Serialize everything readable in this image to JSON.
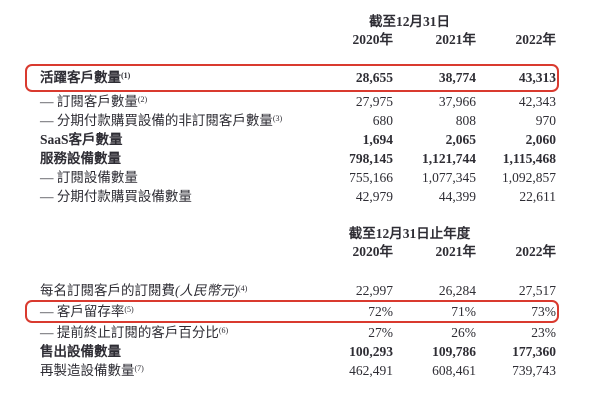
{
  "colors": {
    "highlight_border": "#d93a2f",
    "text": "#2e2d34",
    "background": "#ffffff"
  },
  "table1": {
    "period_header": "截至12月31日",
    "years": [
      "2020年",
      "2021年",
      "2022年"
    ],
    "rows": [
      {
        "label": "活躍客戶數量",
        "sup": "(1)",
        "values": [
          "28,655",
          "38,774",
          "43,313"
        ]
      },
      {
        "label": "— 訂閱客戶數量",
        "sup": "(2)",
        "values": [
          "27,975",
          "37,966",
          "42,343"
        ]
      },
      {
        "label": "— 分期付款購買設備的非訂閱客戶數量",
        "sup": "(3)",
        "values": [
          "680",
          "808",
          "970"
        ]
      },
      {
        "label": "SaaS客戶數量",
        "values": [
          "1,694",
          "2,065",
          "2,060"
        ]
      },
      {
        "label": "服務設備數量",
        "values": [
          "798,145",
          "1,121,744",
          "1,115,468"
        ]
      },
      {
        "label": "— 訂閱設備數量",
        "values": [
          "755,166",
          "1,077,345",
          "1,092,857"
        ]
      },
      {
        "label": "— 分期付款購買設備數量",
        "values": [
          "42,979",
          "44,399",
          "22,611"
        ]
      }
    ]
  },
  "table2": {
    "period_header": "截至12月31日止年度",
    "years": [
      "2020年",
      "2021年",
      "2022年"
    ],
    "rows": [
      {
        "label": "每名訂閱客戶的訂閱費",
        "label_paren": "(人民幣元)",
        "sup": "(4)",
        "values": [
          "22,997",
          "26,284",
          "27,517"
        ]
      },
      {
        "label": "— 客戶留存率",
        "sup": "(5)",
        "values": [
          "72%",
          "71%",
          "73%"
        ]
      },
      {
        "label": "— 提前終止訂閱的客戶百分比",
        "sup": "(6)",
        "values": [
          "27%",
          "26%",
          "23%"
        ]
      },
      {
        "label": "售出設備數量",
        "values": [
          "100,293",
          "109,786",
          "177,360"
        ]
      },
      {
        "label": "再製造設備數量",
        "sup": "(7)",
        "values": [
          "462,491",
          "608,461",
          "739,743"
        ]
      }
    ]
  }
}
